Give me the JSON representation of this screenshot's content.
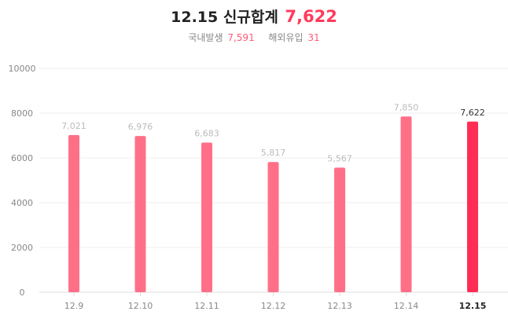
{
  "header": {
    "date_label": "12.15",
    "title_label": "신규합계",
    "total_value": "7,622",
    "domestic_label": "국내발생",
    "domestic_value": "7,591",
    "overseas_label": "해외유입",
    "overseas_value": "31"
  },
  "colors": {
    "bar": "#ff7088",
    "bar_highlight": "#ff2d55",
    "total_text": "#ff3b5c"
  },
  "chart_data": {
    "type": "bar",
    "title": "12.15 신규합계 7,622",
    "categories": [
      "12.9",
      "12.10",
      "12.11",
      "12.12",
      "12.13",
      "12.14",
      "12.15"
    ],
    "values": [
      7021,
      6976,
      6683,
      5817,
      5567,
      7850,
      7622
    ],
    "data_labels": [
      "7,021",
      "6,976",
      "6,683",
      "5,817",
      "5,567",
      "7,850",
      "7,622"
    ],
    "highlight_category": "12.15",
    "ylim": [
      0,
      10000
    ],
    "yticks": [
      0,
      2000,
      4000,
      6000,
      8000,
      10000
    ],
    "ytick_labels": [
      "0",
      "2000",
      "4000",
      "6000",
      "8000",
      "10000"
    ],
    "xlabel": "",
    "ylabel": "",
    "grid": true,
    "legend": "none"
  }
}
